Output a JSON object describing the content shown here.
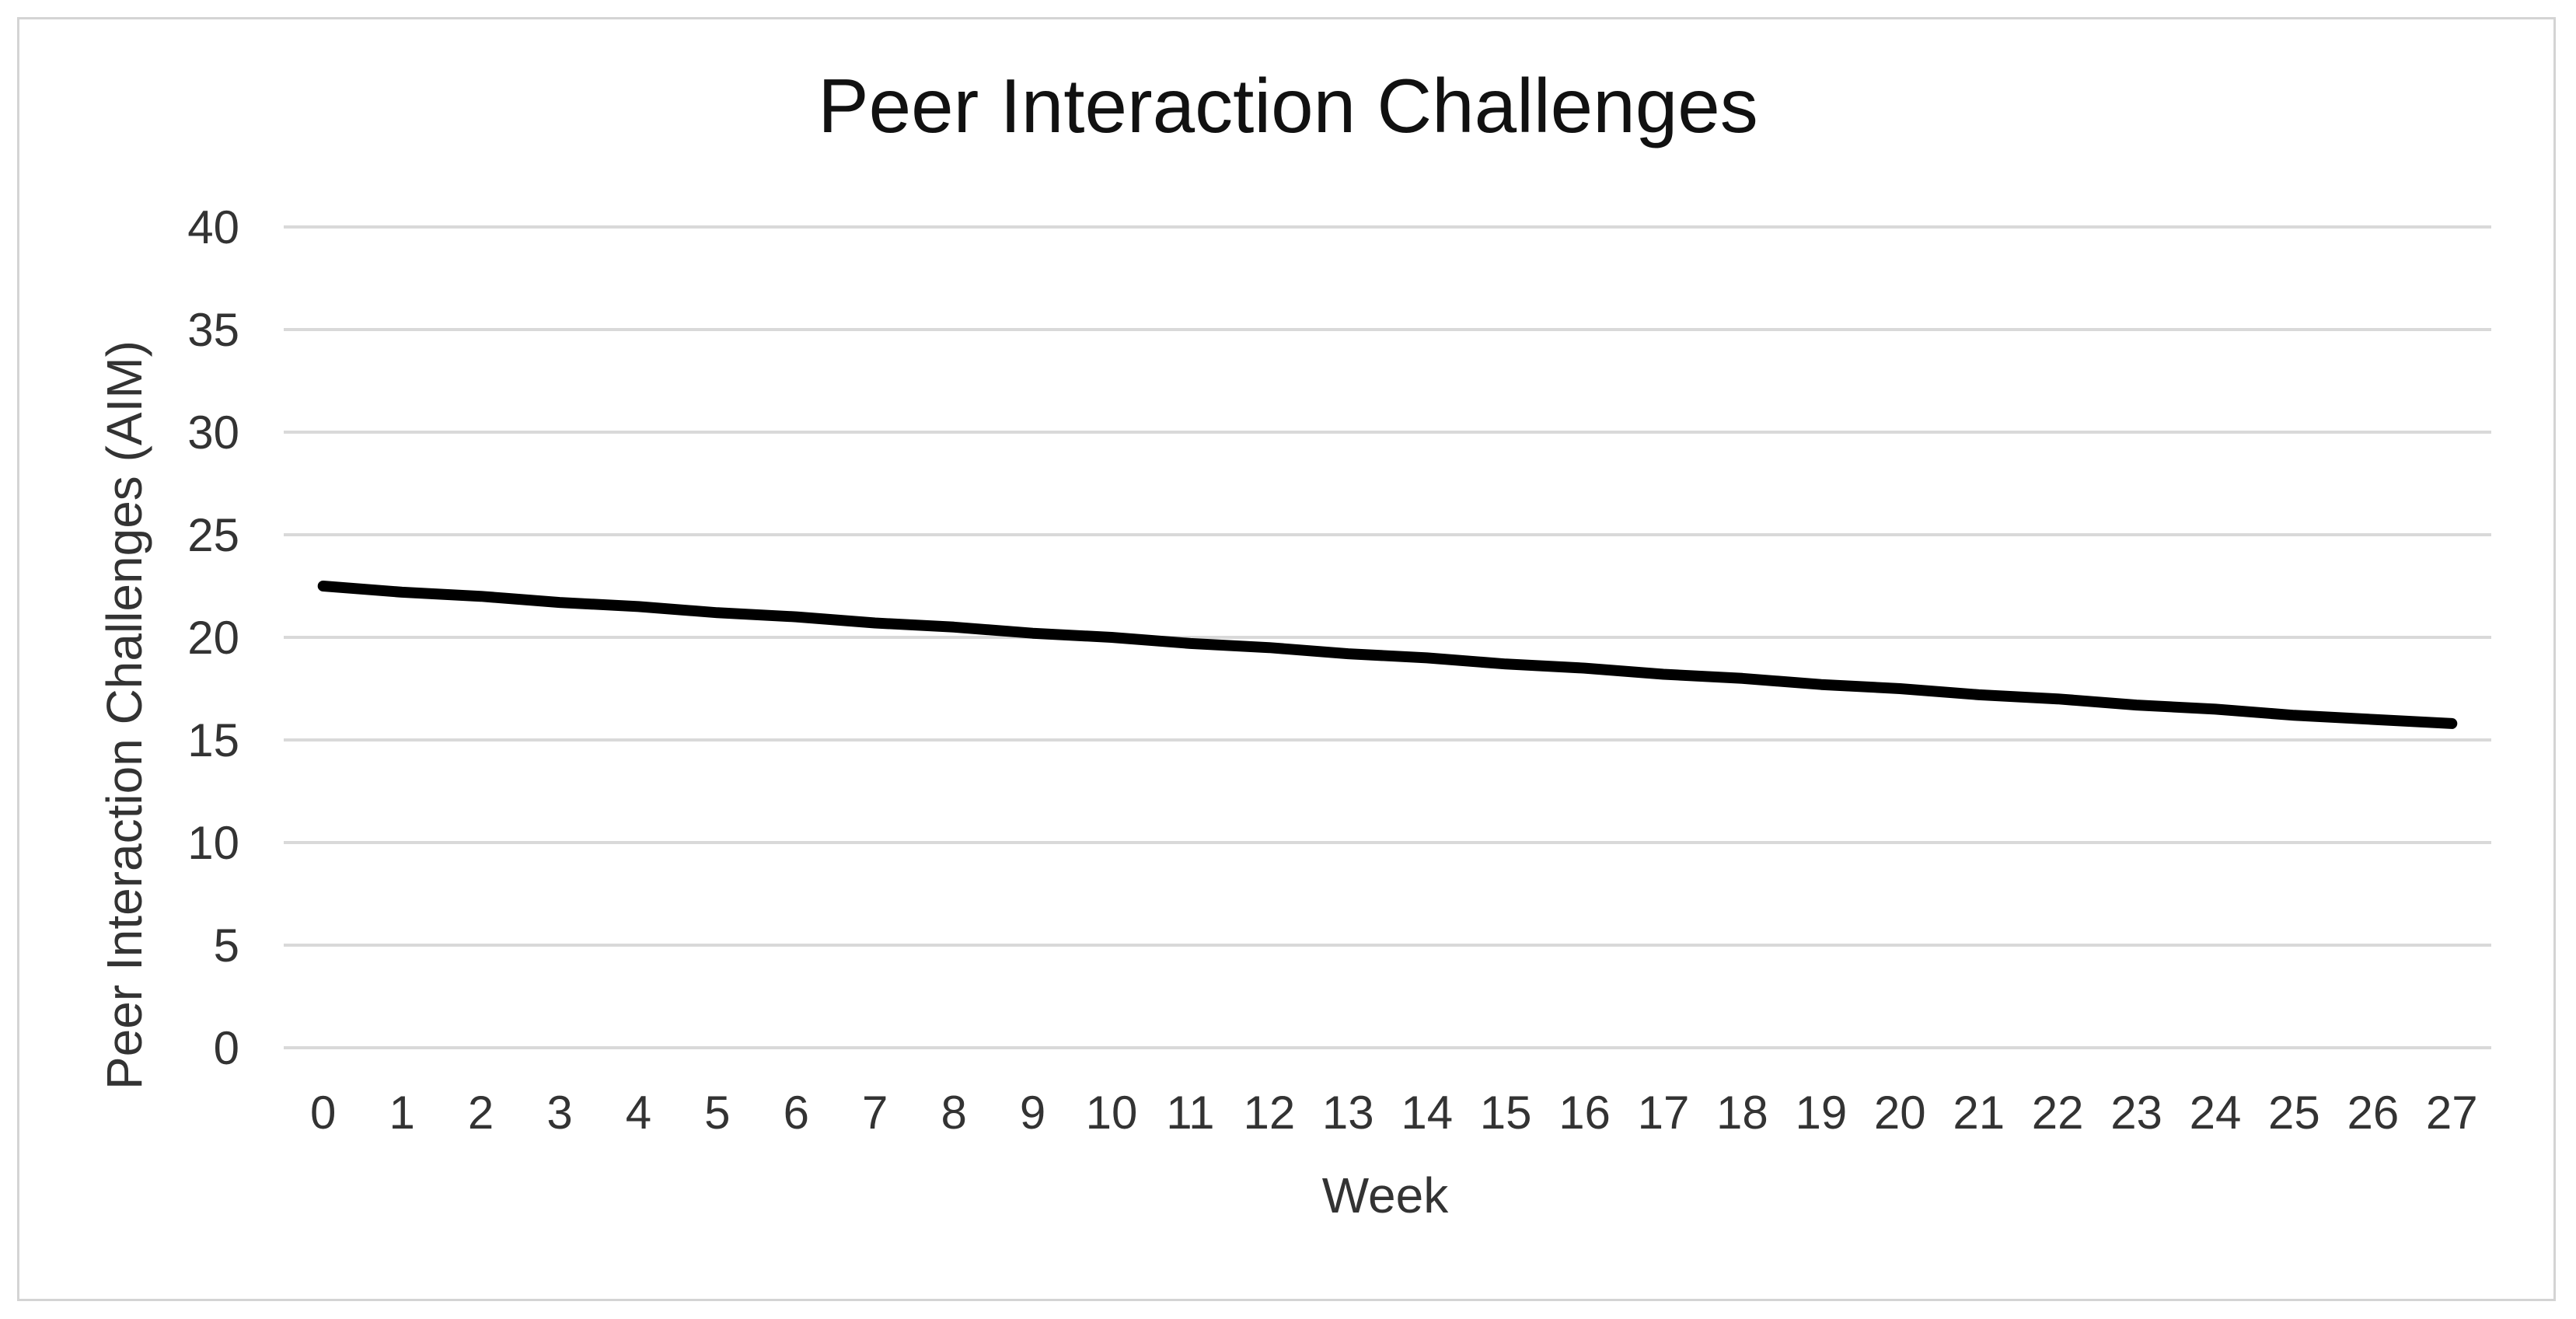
{
  "chart_data": {
    "type": "line",
    "title": "Peer Interaction Challenges",
    "xlabel": "Week",
    "ylabel": "Peer Interaction Challenges (AIM)",
    "x": [
      0,
      1,
      2,
      3,
      4,
      5,
      6,
      7,
      8,
      9,
      10,
      11,
      12,
      13,
      14,
      15,
      16,
      17,
      18,
      19,
      20,
      21,
      22,
      23,
      24,
      25,
      26,
      27
    ],
    "series": [
      {
        "values": [
          22.5,
          22.2,
          22.0,
          21.7,
          21.5,
          21.2,
          21.0,
          20.7,
          20.5,
          20.2,
          20.0,
          19.7,
          19.5,
          19.2,
          19.0,
          18.7,
          18.5,
          18.2,
          18.0,
          17.7,
          17.5,
          17.2,
          17.0,
          16.7,
          16.5,
          16.2,
          16.0,
          15.8
        ],
        "color": "#000000"
      }
    ],
    "ylim": [
      0,
      40
    ],
    "yticks": [
      0,
      5,
      10,
      15,
      20,
      25,
      30,
      35,
      40
    ],
    "grid": true,
    "legend": "none"
  }
}
